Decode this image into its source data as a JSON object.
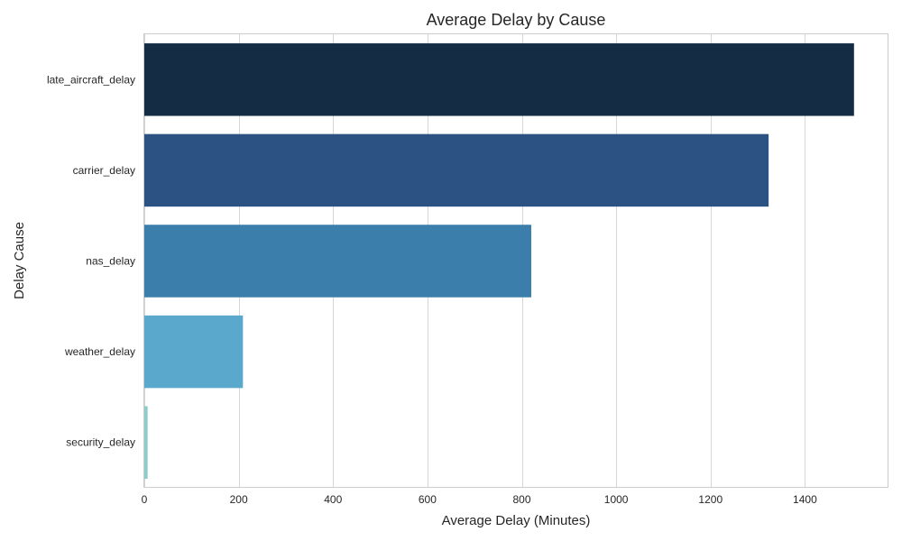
{
  "chart_data": {
    "type": "bar",
    "orientation": "horizontal",
    "title": "Average Delay by Cause",
    "xlabel": "Average Delay (Minutes)",
    "ylabel": "Delay Cause",
    "categories": [
      "late_aircraft_delay",
      "carrier_delay",
      "nas_delay",
      "weather_delay",
      "security_delay"
    ],
    "values": [
      1504,
      1323,
      820,
      209,
      7
    ],
    "colors": [
      "#142d45",
      "#2b5282",
      "#3b7eab",
      "#5aa8cc",
      "#8dcdc9"
    ],
    "xlim": [
      0,
      1577
    ],
    "xticks": [
      0,
      200,
      400,
      600,
      800,
      1000,
      1200,
      1400
    ],
    "grid": true,
    "legend": "none"
  }
}
